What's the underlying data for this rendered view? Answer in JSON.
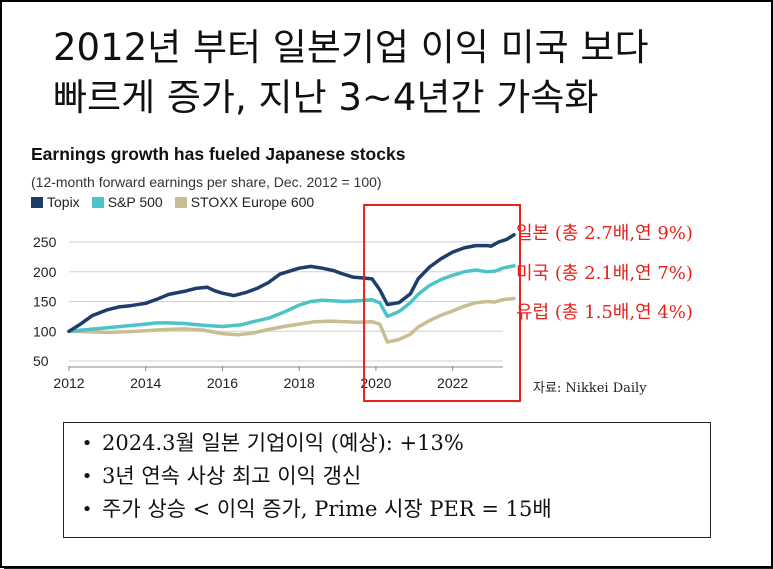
{
  "slide": {
    "title_lines": [
      "2012년 부터 일본기업 이익 미국 보다",
      "빠르게 증가, 지난 3~4년간 가속화"
    ],
    "annotations": [
      "일본 (총 2.7배,연 9%)",
      "미국 (총 2.1배,연 7%)",
      "유럽 (총 1.5배,연 4%)"
    ],
    "source": "자료: Nikkei Daily",
    "bullets": [
      "2024.3월 일본 기업이익 (예상): +13%",
      "3년 연속 사상 최고 이익 갱신",
      "주가 상승 < 이익 증가, Prime 시장 PER = 15배"
    ],
    "bullet_marker": "•",
    "highlight_color": "#e5231b"
  },
  "chart_data": {
    "type": "line",
    "title": "Earnings growth has fueled Japanese stocks",
    "subtitle": "(12-month forward earnings per share, Dec. 2012 = 100)",
    "xlim": [
      2012,
      2023.2
    ],
    "ylim": [
      50,
      260
    ],
    "x_ticks": [
      2012,
      2014,
      2016,
      2018,
      2020,
      2022
    ],
    "y_ticks": [
      50,
      100,
      150,
      200,
      250
    ],
    "grid": "horizontal",
    "legend": "top-left",
    "series": [
      {
        "name": "Topix",
        "color": "#1f3d6b",
        "points": [
          [
            2012.0,
            100
          ],
          [
            2012.3,
            112
          ],
          [
            2012.6,
            126
          ],
          [
            2013.0,
            136
          ],
          [
            2013.3,
            141
          ],
          [
            2013.6,
            143
          ],
          [
            2014.0,
            147
          ],
          [
            2014.3,
            154
          ],
          [
            2014.6,
            162
          ],
          [
            2015.0,
            167
          ],
          [
            2015.3,
            172
          ],
          [
            2015.6,
            174
          ],
          [
            2015.8,
            168
          ],
          [
            2016.0,
            164
          ],
          [
            2016.3,
            160
          ],
          [
            2016.6,
            165
          ],
          [
            2016.9,
            172
          ],
          [
            2017.2,
            182
          ],
          [
            2017.5,
            196
          ],
          [
            2017.8,
            202
          ],
          [
            2018.0,
            206
          ],
          [
            2018.3,
            209
          ],
          [
            2018.6,
            206
          ],
          [
            2018.9,
            202
          ],
          [
            2019.1,
            197
          ],
          [
            2019.4,
            191
          ],
          [
            2019.6,
            190
          ],
          [
            2019.9,
            188
          ],
          [
            2020.1,
            170
          ],
          [
            2020.3,
            145
          ],
          [
            2020.6,
            148
          ],
          [
            2020.9,
            163
          ],
          [
            2021.1,
            188
          ],
          [
            2021.4,
            208
          ],
          [
            2021.7,
            222
          ],
          [
            2022.0,
            233
          ],
          [
            2022.3,
            240
          ],
          [
            2022.6,
            244
          ],
          [
            2022.9,
            244
          ],
          [
            2023.0,
            243
          ],
          [
            2023.2,
            250
          ],
          [
            2023.4,
            254
          ],
          [
            2023.6,
            262
          ]
        ]
      },
      {
        "name": "S&P 500",
        "color": "#4cc3c7",
        "points": [
          [
            2012.0,
            100
          ],
          [
            2012.5,
            103
          ],
          [
            2013.0,
            106
          ],
          [
            2013.5,
            109
          ],
          [
            2014.0,
            112
          ],
          [
            2014.3,
            114
          ],
          [
            2014.6,
            114
          ],
          [
            2015.0,
            113
          ],
          [
            2015.5,
            110
          ],
          [
            2016.0,
            108
          ],
          [
            2016.5,
            111
          ],
          [
            2016.8,
            116
          ],
          [
            2017.2,
            122
          ],
          [
            2017.6,
            132
          ],
          [
            2018.0,
            144
          ],
          [
            2018.3,
            150
          ],
          [
            2018.6,
            152
          ],
          [
            2018.9,
            151
          ],
          [
            2019.2,
            150
          ],
          [
            2019.5,
            151
          ],
          [
            2019.9,
            153
          ],
          [
            2020.1,
            148
          ],
          [
            2020.3,
            125
          ],
          [
            2020.6,
            133
          ],
          [
            2020.9,
            148
          ],
          [
            2021.1,
            162
          ],
          [
            2021.4,
            177
          ],
          [
            2021.7,
            187
          ],
          [
            2022.0,
            194
          ],
          [
            2022.3,
            200
          ],
          [
            2022.6,
            203
          ],
          [
            2022.9,
            200
          ],
          [
            2023.1,
            201
          ],
          [
            2023.3,
            206
          ],
          [
            2023.6,
            210
          ]
        ]
      },
      {
        "name": "STOXX Europe 600",
        "color": "#c9bd92",
        "points": [
          [
            2012.0,
            100
          ],
          [
            2012.5,
            99
          ],
          [
            2013.0,
            98
          ],
          [
            2013.5,
            99
          ],
          [
            2014.0,
            101
          ],
          [
            2014.5,
            103
          ],
          [
            2015.0,
            104
          ],
          [
            2015.5,
            102
          ],
          [
            2016.0,
            96
          ],
          [
            2016.4,
            94
          ],
          [
            2016.8,
            97
          ],
          [
            2017.2,
            103
          ],
          [
            2017.6,
            108
          ],
          [
            2018.0,
            112
          ],
          [
            2018.4,
            116
          ],
          [
            2018.8,
            117
          ],
          [
            2019.2,
            116
          ],
          [
            2019.5,
            115
          ],
          [
            2019.9,
            116
          ],
          [
            2020.1,
            112
          ],
          [
            2020.3,
            82
          ],
          [
            2020.6,
            86
          ],
          [
            2020.9,
            95
          ],
          [
            2021.1,
            107
          ],
          [
            2021.4,
            118
          ],
          [
            2021.7,
            127
          ],
          [
            2022.0,
            134
          ],
          [
            2022.3,
            142
          ],
          [
            2022.6,
            148
          ],
          [
            2022.9,
            150
          ],
          [
            2023.1,
            149
          ],
          [
            2023.3,
            153
          ],
          [
            2023.6,
            155
          ]
        ]
      }
    ],
    "highlight_range": [
      2019.9,
      2023.6
    ]
  }
}
